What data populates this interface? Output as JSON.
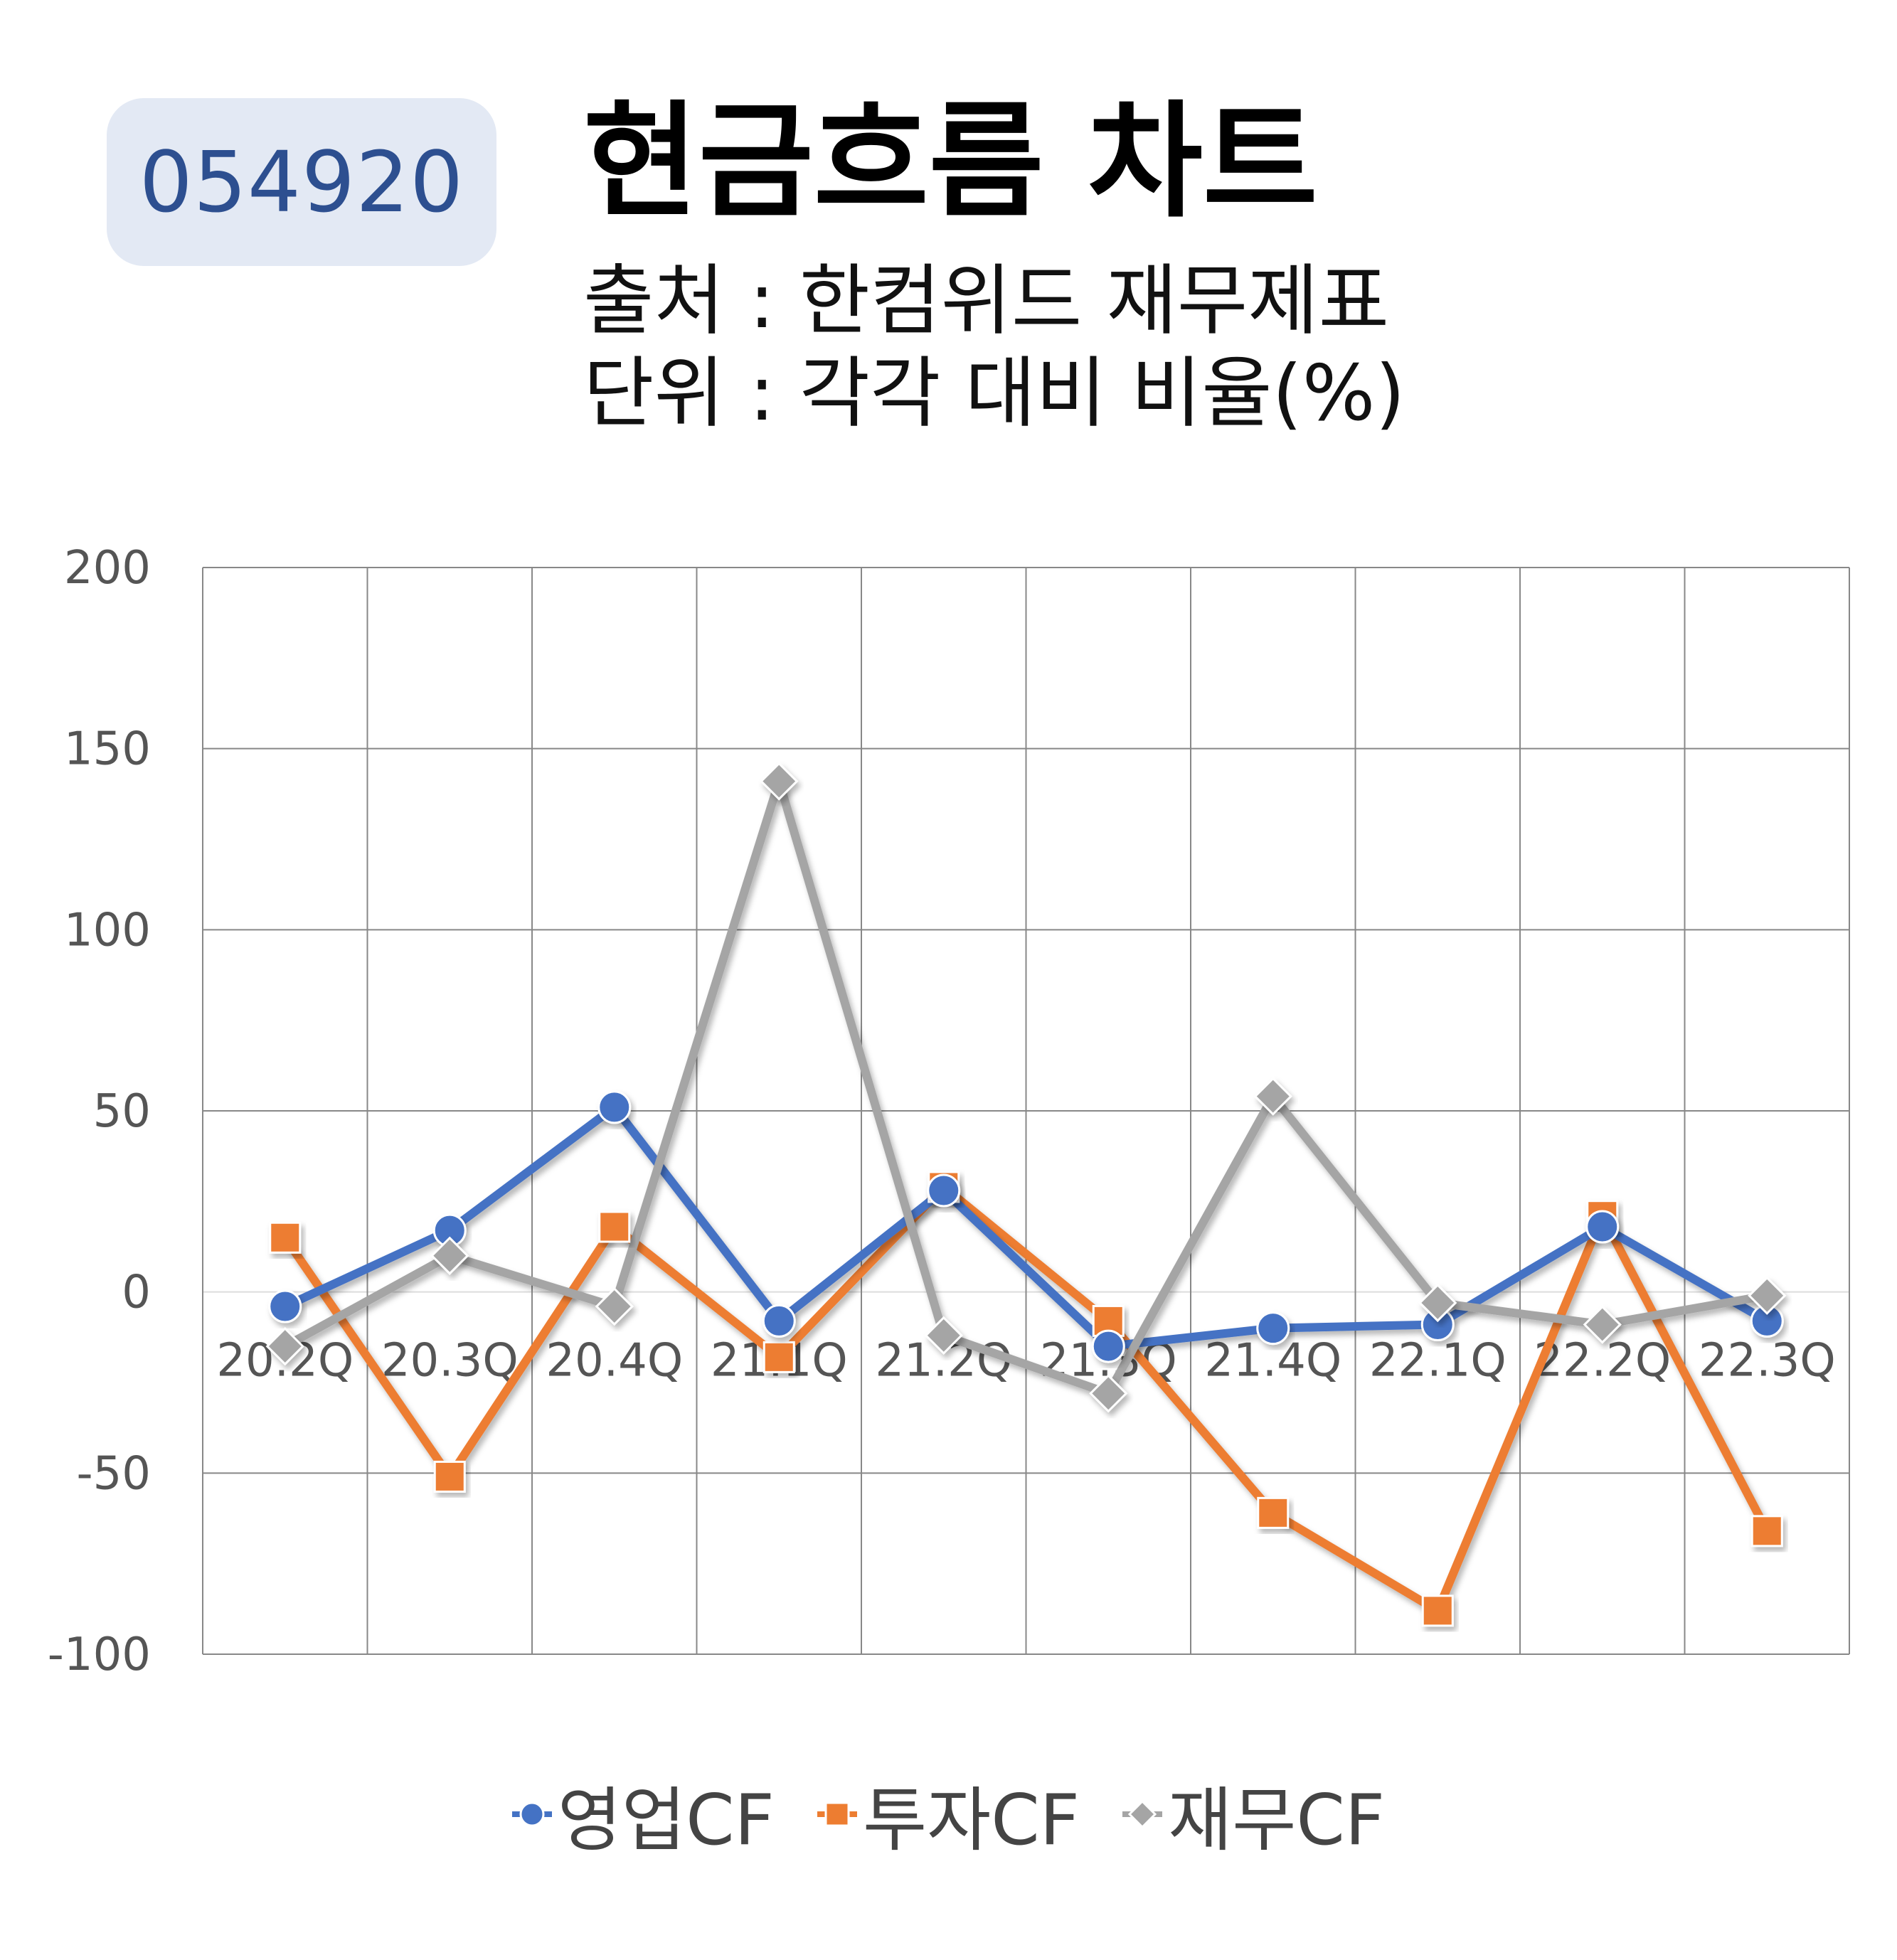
{
  "badge": {
    "code": "054920"
  },
  "header": {
    "title": "현금흐름 차트",
    "source": "출처 : 한컴위드 재무제표",
    "unit": "단위 : 각각 대비 비율(%)"
  },
  "colors": {
    "operating": "#4472c4",
    "investing": "#ed7d31",
    "financing": "#a5a5a5",
    "grid": "#888888",
    "badge_bg": "#e3e9f4",
    "badge_text": "#2d4f90"
  },
  "chart_data": {
    "type": "line",
    "categories": [
      "20.2Q",
      "20.3Q",
      "20.4Q",
      "21.1Q",
      "21.2Q",
      "21.3Q",
      "21.4Q",
      "22.1Q",
      "22.2Q",
      "22.3Q"
    ],
    "ylim": [
      -100,
      200
    ],
    "yticks": [
      "200",
      "150",
      "100",
      "50",
      "0",
      "-50",
      "-100"
    ],
    "grid": true,
    "legend_position": "bottom",
    "series": [
      {
        "name": "영업CF",
        "marker": "circle",
        "values": [
          -4,
          17,
          51,
          -8,
          28,
          -15,
          -10,
          -9,
          18,
          -8
        ]
      },
      {
        "name": "투자CF",
        "marker": "square",
        "values": [
          15,
          -51,
          18,
          -18,
          29,
          -8,
          -61,
          -88,
          21,
          -66
        ]
      },
      {
        "name": "재무CF",
        "marker": "diamond",
        "values": [
          -15,
          10,
          -4,
          141,
          -12,
          -28,
          54,
          -3,
          -9,
          -1
        ]
      }
    ]
  }
}
